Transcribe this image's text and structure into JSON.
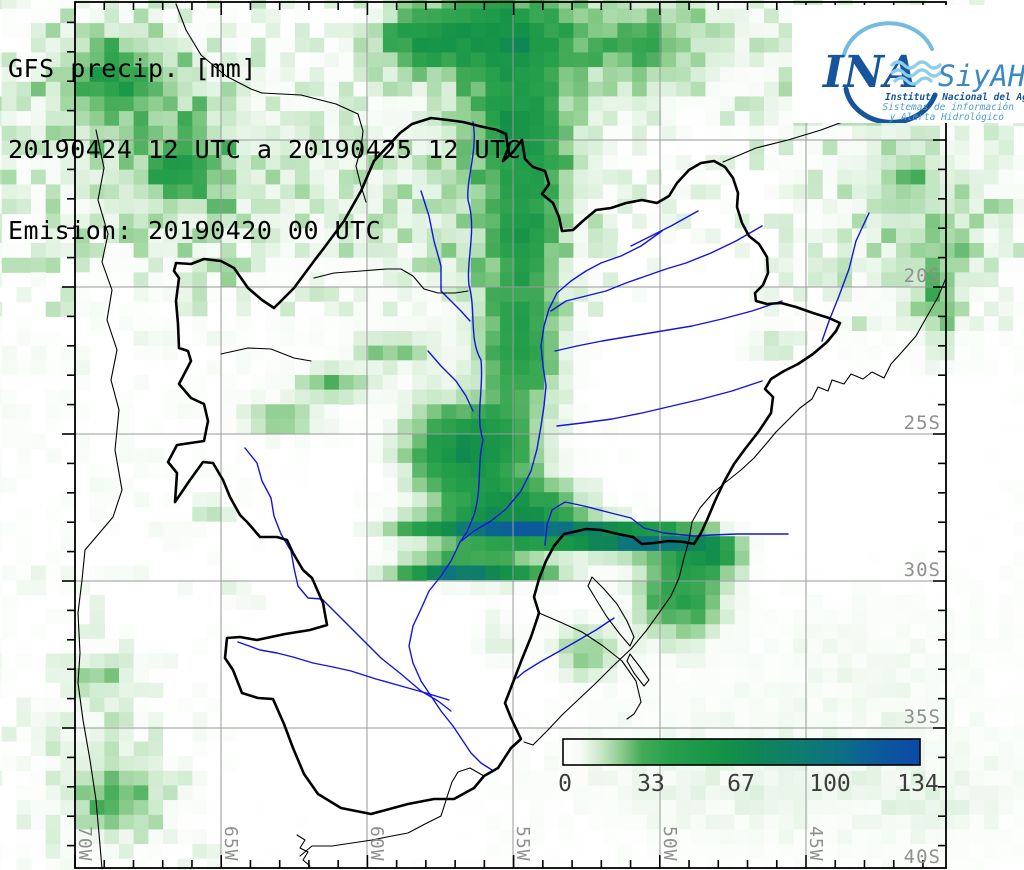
{
  "title": {
    "line1": "GFS precip. [mm]",
    "line2": "20190424 12 UTC a 20190425 12 UTC",
    "line3": "Emision: 20190420 00 UTC"
  },
  "logo": {
    "acronym": "INA",
    "program": "SiyAH",
    "institute": "Instituto Nacional del Agua",
    "subtitle1": "Sistemas de información",
    "subtitle2": "y Alerta Hidrológico"
  },
  "axes": {
    "lat_labels": [
      "20S",
      "25S",
      "30S",
      "35S",
      "40S"
    ],
    "lon_labels": [
      "70W",
      "65W",
      "60W",
      "55W",
      "50W",
      "45W"
    ]
  },
  "colorbar": {
    "unit": "mm",
    "min": 0,
    "max": 134,
    "tick_values": [
      0,
      33,
      67,
      100,
      134
    ],
    "labels": [
      "0",
      "33",
      "67",
      "100",
      "134"
    ],
    "colors": {
      "zero": "#ffffff",
      "green": "#27a04b",
      "deep_green": "#128a47",
      "teal": "#0f7d6d",
      "blue": "#0b4aa6"
    }
  },
  "map_colors": {
    "river": "#1414dd",
    "border": "#000000",
    "gridline": "#9a9a9a",
    "label_gray": "#8f8f8f",
    "logo_dark_blue": "#17549e",
    "logo_light_blue": "#5aa7d4"
  }
}
